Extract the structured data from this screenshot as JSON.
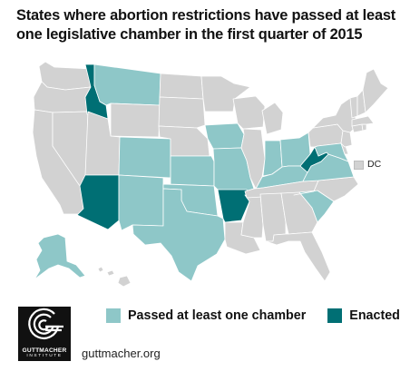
{
  "title": "States where abortion restrictions have passed at least one legislative chamber in the first quarter of 2015",
  "colors": {
    "passed": "#8ec7c8",
    "enacted": "#006f74",
    "none": "#d2d2d2",
    "border": "#ffffff"
  },
  "dc_label": "DC",
  "legend": {
    "passed_label": "Passed at least one chamber",
    "enacted_label": "Enacted"
  },
  "states": {
    "enacted": [
      "Idaho",
      "Arizona",
      "Arkansas",
      "West Virginia"
    ],
    "passed": [
      "Montana",
      "Colorado",
      "New Mexico",
      "Kansas",
      "Oklahoma",
      "Texas",
      "Iowa",
      "Missouri",
      "Indiana",
      "Ohio",
      "Kentucky",
      "Virginia",
      "Maryland",
      "South Carolina",
      "Alaska"
    ]
  },
  "logo": {
    "name": "GUTTMACHER",
    "sub": "INSTITUTE"
  },
  "website": "guttmacher.org"
}
